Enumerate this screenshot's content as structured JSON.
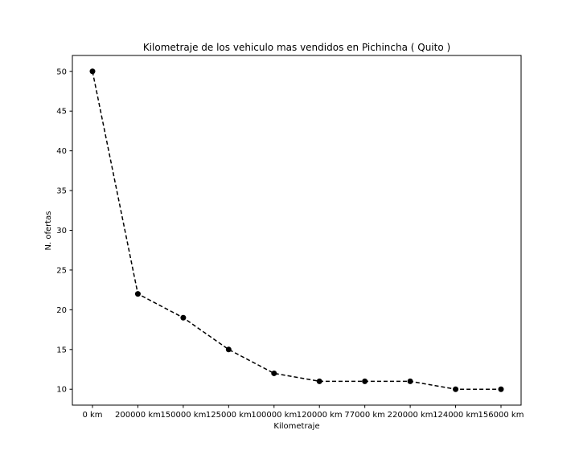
{
  "chart_data": {
    "type": "line",
    "title": "Kilometraje de los vehiculo mas vendidos en Pichincha ( Quito )",
    "xlabel": "Kilometraje",
    "ylabel": "N. ofertas",
    "categories": [
      "0 km",
      "200000 km",
      "150000 km",
      "125000 km",
      "100000 km",
      "120000 km",
      "77000 km",
      "220000 km",
      "124000 km",
      "156000 km"
    ],
    "series": [
      {
        "name": "",
        "values": [
          50,
          22,
          19,
          15,
          12,
          11,
          11,
          11,
          10,
          10
        ],
        "color": "#000000",
        "line_style": "dashed",
        "marker": "circle"
      }
    ],
    "ylim": [
      8,
      52
    ],
    "yticks": [
      10,
      15,
      20,
      25,
      30,
      35,
      40,
      45,
      50
    ],
    "grid": false,
    "legend": "none"
  }
}
